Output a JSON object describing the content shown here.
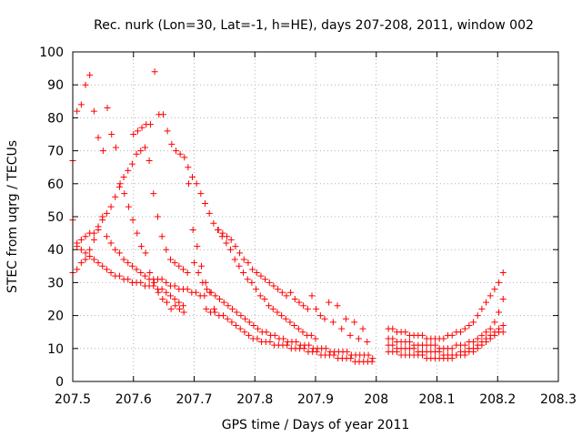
{
  "chart_data": {
    "type": "scatter",
    "title": "Rec. nurk (Lon=30, Lat=-1, h=HE), days 207-208, 2011, window 002",
    "xlabel": "GPS time / Days of year 2011",
    "ylabel": "STEC from uqrg / TECUs",
    "xlim": [
      207.5,
      208.3
    ],
    "ylim": [
      0,
      100
    ],
    "xticks": [
      "207.5",
      "207.6",
      "207.7",
      "207.8",
      "207.9",
      "208",
      "208.1",
      "208.2",
      "208.3"
    ],
    "yticks": [
      "0",
      "10",
      "20",
      "30",
      "40",
      "50",
      "60",
      "70",
      "80",
      "90",
      "100"
    ],
    "grid": true,
    "marker": "+",
    "color": "#ff0000",
    "series": [
      {
        "x": [
          207.5,
          207.507,
          207.514,
          207.521,
          207.528,
          207.535,
          207.542,
          207.55,
          207.557,
          207.564,
          207.571,
          207.578,
          207.585,
          207.592,
          207.599,
          207.606,
          207.613,
          207.62,
          207.627,
          207.634,
          207.641,
          207.648,
          207.655,
          207.662,
          207.669,
          207.676,
          207.683
        ],
        "y": [
          67,
          82,
          84,
          90,
          93,
          82,
          74,
          70,
          83,
          75,
          71,
          60,
          57,
          53,
          49,
          45,
          41,
          39,
          33,
          30,
          27,
          25,
          24,
          22,
          23,
          22,
          21
        ]
      },
      {
        "x": [
          207.6,
          207.607,
          207.614,
          207.621,
          207.628,
          207.635,
          207.642,
          207.649,
          207.656,
          207.663,
          207.67,
          207.677,
          207.684,
          207.691,
          207.698,
          207.705,
          207.712,
          207.719,
          207.726,
          207.733
        ],
        "y": [
          75,
          76,
          77,
          78,
          78,
          94,
          81,
          81,
          76,
          72,
          70,
          69,
          68,
          60,
          46,
          41,
          35,
          30,
          27,
          22
        ]
      },
      {
        "x": [
          207.507,
          207.514,
          207.521,
          207.528,
          207.535,
          207.542,
          207.549,
          207.556,
          207.563,
          207.57,
          207.577,
          207.584,
          207.591,
          207.598,
          207.605,
          207.612,
          207.619,
          207.626,
          207.633,
          207.64,
          207.647,
          207.654,
          207.661,
          207.668,
          207.675,
          207.682,
          207.689
        ],
        "y": [
          41,
          43,
          44,
          45,
          45,
          47,
          50,
          51,
          53,
          56,
          59,
          62,
          64,
          66,
          69,
          70,
          71,
          67,
          57,
          50,
          44,
          40,
          37,
          36,
          35,
          34,
          33
        ]
      },
      {
        "x": [
          207.5,
          207.507,
          207.514,
          207.521,
          207.528,
          207.535,
          207.542,
          207.549,
          207.556,
          207.563,
          207.57,
          207.577,
          207.584,
          207.591,
          207.598,
          207.605,
          207.612,
          207.619,
          207.626,
          207.633,
          207.64,
          207.647,
          207.654,
          207.661,
          207.668,
          207.675,
          207.682,
          207.689,
          207.696,
          207.703,
          207.71,
          207.717
        ],
        "y": [
          49,
          42,
          40,
          39,
          40,
          43,
          46,
          49,
          44,
          42,
          40,
          39,
          37,
          36,
          35,
          34,
          33,
          32,
          31,
          31,
          31,
          31,
          30,
          29,
          29,
          28,
          28,
          28,
          27,
          27,
          26,
          26
        ]
      },
      {
        "x": [
          207.5,
          207.507,
          207.514,
          207.521,
          207.528,
          207.535,
          207.542,
          207.549,
          207.556,
          207.563,
          207.57,
          207.577,
          207.584,
          207.591,
          207.598,
          207.605,
          207.612,
          207.619,
          207.626,
          207.633,
          207.64,
          207.647,
          207.654,
          207.661,
          207.668,
          207.675,
          207.682
        ],
        "y": [
          33,
          34,
          36,
          37,
          38,
          37,
          36,
          35,
          34,
          33,
          32,
          32,
          31,
          31,
          30,
          30,
          30,
          29,
          29,
          29,
          28,
          28,
          27,
          26,
          25,
          24,
          23
        ]
      },
      {
        "x": [
          207.69,
          207.697,
          207.704,
          207.711,
          207.718,
          207.725,
          207.732,
          207.739,
          207.746,
          207.753,
          207.76,
          207.767,
          207.774,
          207.781,
          207.788,
          207.795,
          207.802,
          207.809,
          207.816,
          207.823,
          207.83,
          207.837,
          207.844,
          207.851,
          207.858,
          207.865,
          207.872,
          207.879,
          207.886,
          207.893,
          207.9
        ],
        "y": [
          65,
          62,
          60,
          57,
          54,
          51,
          48,
          46,
          44,
          42,
          40,
          37,
          35,
          33,
          31,
          30,
          28,
          26,
          25,
          23,
          22,
          21,
          20,
          19,
          18,
          17,
          16,
          15,
          14,
          14,
          13
        ]
      },
      {
        "x": [
          207.74,
          207.747,
          207.754,
          207.761,
          207.768,
          207.775,
          207.782,
          207.789,
          207.796,
          207.803,
          207.81,
          207.817,
          207.824,
          207.831,
          207.838,
          207.845,
          207.852,
          207.859,
          207.866,
          207.873,
          207.88,
          207.887,
          207.894,
          207.901,
          207.908,
          207.915,
          207.922,
          207.929,
          207.936,
          207.943,
          207.95,
          207.957,
          207.964,
          207.971,
          207.978,
          207.985
        ],
        "y": [
          46,
          45,
          44,
          43,
          41,
          39,
          37,
          36,
          34,
          33,
          32,
          31,
          30,
          29,
          28,
          27,
          26,
          27,
          25,
          24,
          23,
          22,
          26,
          22,
          20,
          19,
          24,
          18,
          23,
          16,
          19,
          14,
          18,
          13,
          16,
          12
        ]
      },
      {
        "x": [
          207.7,
          207.707,
          207.714,
          207.721,
          207.728,
          207.735,
          207.742,
          207.749,
          207.756,
          207.763,
          207.77,
          207.777,
          207.784,
          207.791,
          207.798,
          207.805,
          207.812,
          207.819,
          207.826,
          207.833,
          207.84,
          207.847,
          207.854,
          207.861,
          207.868,
          207.875,
          207.882,
          207.889,
          207.896,
          207.903,
          207.91,
          207.917,
          207.924,
          207.931,
          207.938,
          207.945,
          207.952,
          207.959,
          207.966,
          207.973,
          207.98,
          207.987,
          207.994
        ],
        "y": [
          36,
          33,
          30,
          28,
          27,
          26,
          25,
          24,
          23,
          22,
          21,
          20,
          19,
          18,
          17,
          16,
          15,
          15,
          14,
          14,
          13,
          13,
          12,
          12,
          12,
          11,
          11,
          11,
          10,
          10,
          10,
          10,
          9,
          9,
          9,
          9,
          9,
          8,
          8,
          8,
          8,
          8,
          7
        ]
      },
      {
        "x": [
          207.72,
          207.727,
          207.734,
          207.741,
          207.748,
          207.755,
          207.762,
          207.769,
          207.776,
          207.783,
          207.79,
          207.797,
          207.804,
          207.811,
          207.818,
          207.825,
          207.832,
          207.839,
          207.846,
          207.853,
          207.86,
          207.867,
          207.874,
          207.881,
          207.888,
          207.895,
          207.902,
          207.909,
          207.916,
          207.923,
          207.93,
          207.937,
          207.944,
          207.951,
          207.958,
          207.965,
          207.972,
          207.979,
          207.986,
          207.993
        ],
        "y": [
          22,
          21,
          21,
          20,
          20,
          19,
          18,
          17,
          16,
          15,
          14,
          13,
          13,
          12,
          12,
          12,
          11,
          11,
          11,
          11,
          10,
          10,
          10,
          10,
          9,
          9,
          9,
          8,
          8,
          8,
          8,
          7,
          7,
          7,
          7,
          6,
          6,
          6,
          6,
          6
        ]
      },
      {
        "x": [
          208.02,
          208.027,
          208.034,
          208.041,
          208.048,
          208.055,
          208.062,
          208.069,
          208.076,
          208.083,
          208.09,
          208.097,
          208.104,
          208.111,
          208.118,
          208.125,
          208.132,
          208.139,
          208.146,
          208.153,
          208.16,
          208.167,
          208.174,
          208.181,
          208.188,
          208.195,
          208.202,
          208.209
        ],
        "y": [
          16,
          16,
          15,
          15,
          15,
          14,
          14,
          14,
          14,
          13,
          13,
          13,
          13,
          13,
          14,
          14,
          15,
          15,
          16,
          17,
          18,
          20,
          22,
          24,
          26,
          28,
          30,
          33
        ]
      },
      {
        "x": [
          208.02,
          208.027,
          208.034,
          208.041,
          208.048,
          208.055,
          208.062,
          208.069,
          208.076,
          208.083,
          208.09,
          208.097,
          208.104,
          208.111,
          208.118,
          208.125,
          208.132,
          208.139,
          208.146,
          208.153,
          208.16,
          208.167,
          208.174,
          208.181,
          208.188,
          208.195,
          208.202,
          208.209
        ],
        "y": [
          13,
          13,
          12,
          12,
          12,
          12,
          11,
          11,
          11,
          11,
          11,
          11,
          10,
          10,
          10,
          10,
          11,
          11,
          11,
          12,
          12,
          13,
          14,
          15,
          16,
          18,
          21,
          25
        ]
      },
      {
        "x": [
          208.02,
          208.027,
          208.034,
          208.041,
          208.048,
          208.055,
          208.062,
          208.069,
          208.076,
          208.083,
          208.09,
          208.097,
          208.104,
          208.111,
          208.118,
          208.125,
          208.132,
          208.139,
          208.146,
          208.153,
          208.16,
          208.167,
          208.174,
          208.181,
          208.188,
          208.195,
          208.202,
          208.209
        ],
        "y": [
          11,
          11,
          10,
          10,
          10,
          10,
          10,
          9,
          9,
          9,
          9,
          9,
          9,
          8,
          8,
          8,
          8,
          9,
          9,
          10,
          10,
          11,
          12,
          13,
          14,
          15,
          16,
          17
        ]
      },
      {
        "x": [
          208.02,
          208.027,
          208.034,
          208.041,
          208.048,
          208.055,
          208.062,
          208.069,
          208.076,
          208.083,
          208.09,
          208.097,
          208.104,
          208.111,
          208.118,
          208.125,
          208.132,
          208.139,
          208.146,
          208.153,
          208.16,
          208.167,
          208.174,
          208.181,
          208.188,
          208.195,
          208.202,
          208.209
        ],
        "y": [
          9,
          9,
          9,
          8,
          8,
          8,
          8,
          8,
          8,
          7,
          7,
          7,
          7,
          7,
          7,
          7,
          8,
          8,
          8,
          9,
          9,
          10,
          11,
          12,
          13,
          14,
          15,
          15
        ]
      }
    ]
  }
}
